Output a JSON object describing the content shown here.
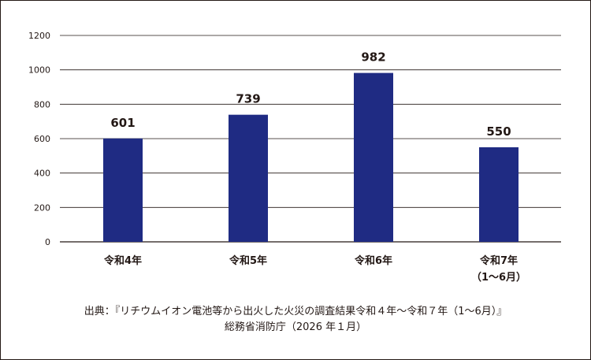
{
  "chart_data": {
    "type": "bar",
    "title": "",
    "xlabel": "",
    "ylabel": "",
    "categories": [
      [
        "令和4年"
      ],
      [
        "令和5年"
      ],
      [
        "令和6年"
      ],
      [
        "令和7年",
        "（1〜6月）"
      ]
    ],
    "values": [
      601,
      739,
      982,
      550
    ],
    "ylim": [
      0,
      1200
    ],
    "yticks": [
      0,
      200,
      400,
      600,
      800,
      1000,
      1200
    ],
    "grid": true,
    "colors": {
      "bar": "#1f2b83",
      "grid": "#231815",
      "text": "#231815"
    }
  },
  "source": {
    "line1": "出典：『リチウムイオン電池等から出火した火災の調査結果令和４年〜令和７年（1〜6月）』",
    "line2": "総務省消防庁（2026 年１月）"
  }
}
